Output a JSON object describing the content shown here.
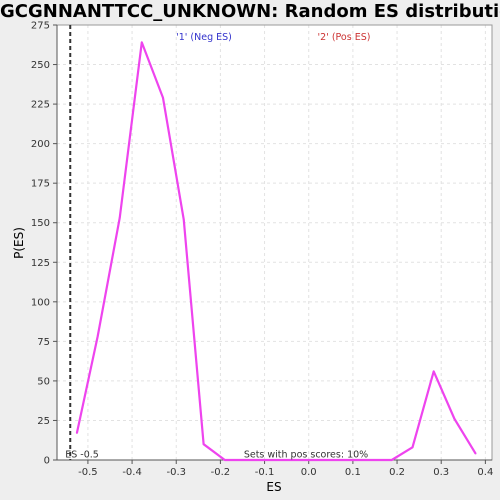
{
  "chart_data": {
    "type": "line",
    "title": "GCGNNANTTCC_UNKNOWN: Random ES distribution",
    "xlabel": "ES",
    "ylabel": "P(ES)",
    "xlim": [
      -0.57,
      0.415
    ],
    "ylim": [
      0,
      275
    ],
    "x_ticks": [
      -0.5,
      -0.4,
      -0.3,
      -0.2,
      -0.1,
      0.0,
      0.1,
      0.2,
      0.3,
      0.4
    ],
    "x_tick_labels": [
      "-0.5",
      "-0.4",
      "-0.3",
      "-0.2",
      "-0.1",
      "0.0",
      "0.1",
      "0.2",
      "0.3",
      "0.4"
    ],
    "y_ticks": [
      0,
      25,
      50,
      75,
      100,
      125,
      150,
      175,
      200,
      225,
      250,
      275
    ],
    "y_tick_labels": [
      "0",
      "25",
      "50",
      "75",
      "100",
      "125",
      "150",
      "175",
      "200",
      "225",
      "250",
      "275"
    ],
    "grid": true,
    "series": [
      {
        "color": "#ee44ee",
        "x": [
          -0.525,
          -0.478,
          -0.428,
          -0.378,
          -0.33,
          -0.283,
          -0.238,
          -0.19,
          -0.143,
          -0.095,
          -0.048,
          0.0,
          0.045,
          0.093,
          0.14,
          0.188,
          0.235,
          0.283,
          0.33,
          0.378
        ],
        "y": [
          17,
          78,
          153,
          264,
          229,
          152,
          10,
          0,
          0,
          0,
          0,
          0,
          0,
          0,
          0,
          0,
          8,
          56,
          26,
          4
        ]
      }
    ],
    "legend": [
      {
        "label": "'1' (Neg ES)",
        "color": "#3333cc"
      },
      {
        "label": "'2' (Pos ES)",
        "color": "#cc3333"
      }
    ],
    "marker_line": {
      "x": -0.54,
      "label": "ES -0.5",
      "style": "dashed"
    },
    "annotation": "Sets with pos scores: 10%"
  },
  "colors": {
    "plot_background": "#ffffff",
    "page_background": "#eeeeee",
    "grid": "#e2e2e2",
    "line": "#ee44ee"
  }
}
